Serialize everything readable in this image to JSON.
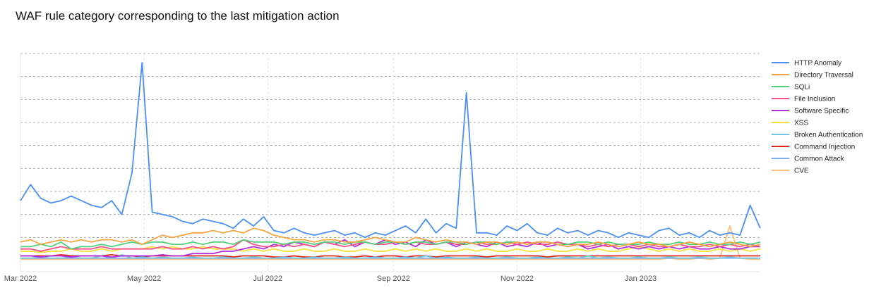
{
  "chart_data": {
    "type": "line",
    "title": "WAF rule category corresponding to the last mitigation action",
    "xlabel": "",
    "ylabel": "",
    "x_start_date": "2022-03-01",
    "x_unit": "days since start",
    "x": [
      0,
      5,
      10,
      15,
      20,
      25,
      30,
      35,
      40,
      45,
      50,
      55,
      60,
      65,
      70,
      75,
      80,
      85,
      90,
      95,
      100,
      105,
      110,
      115,
      120,
      125,
      130,
      135,
      140,
      145,
      150,
      155,
      160,
      165,
      170,
      175,
      180,
      185,
      190,
      195,
      200,
      205,
      210,
      215,
      220,
      225,
      230,
      235,
      240,
      245,
      250,
      255,
      260,
      265,
      270,
      275,
      280,
      285,
      290,
      295,
      300,
      305,
      310,
      315,
      320,
      325,
      330,
      335,
      340,
      345,
      350,
      355,
      360,
      365
    ],
    "xlim": [
      0,
      365
    ],
    "ylim": [
      0,
      9
    ],
    "y_ticks_shown": false,
    "grid": true,
    "x_ticks": [
      {
        "day": 0,
        "label": "Mar 2022"
      },
      {
        "day": 61,
        "label": "May 2022"
      },
      {
        "day": 122,
        "label": "Jul 2022"
      },
      {
        "day": 184,
        "label": "Sep 2022"
      },
      {
        "day": 245,
        "label": "Nov 2022"
      },
      {
        "day": 306,
        "label": "Jan 2023"
      }
    ],
    "legend_position": "right",
    "series": [
      {
        "name": "HTTP Anomaly",
        "color": "#4a8ff5",
        "values": [
          2.6,
          3.3,
          2.7,
          2.5,
          2.6,
          2.8,
          2.6,
          2.4,
          2.3,
          2.6,
          2.0,
          3.8,
          8.6,
          2.1,
          2.0,
          1.9,
          1.7,
          1.6,
          1.8,
          1.7,
          1.6,
          1.4,
          1.8,
          1.5,
          1.9,
          1.3,
          1.2,
          1.4,
          1.2,
          1.1,
          1.2,
          1.3,
          1.1,
          1.2,
          1.0,
          1.2,
          1.1,
          1.3,
          1.5,
          1.2,
          1.8,
          1.2,
          1.6,
          1.4,
          7.3,
          1.2,
          1.2,
          1.1,
          1.5,
          1.3,
          1.6,
          1.2,
          1.1,
          1.4,
          1.2,
          1.3,
          1.1,
          1.3,
          1.2,
          1.0,
          1.2,
          1.1,
          1.0,
          1.3,
          1.4,
          1.1,
          1.2,
          1.0,
          1.3,
          1.1,
          1.2,
          1.1,
          2.4,
          1.4
        ]
      },
      {
        "name": "Directory Traversal",
        "color": "#f7a541",
        "values": [
          0.8,
          0.9,
          0.7,
          0.8,
          0.9,
          0.8,
          0.9,
          0.8,
          0.9,
          0.9,
          0.8,
          0.9,
          0.7,
          0.9,
          1.1,
          1.0,
          1.1,
          1.2,
          1.2,
          1.3,
          1.2,
          1.3,
          1.2,
          1.4,
          1.3,
          1.1,
          1.0,
          0.9,
          0.9,
          0.8,
          0.9,
          0.9,
          0.8,
          0.8,
          0.9,
          1.0,
          0.9,
          0.8,
          0.8,
          1.0,
          0.9,
          0.8,
          0.9,
          0.8,
          0.8,
          0.7,
          0.8,
          0.8,
          0.7,
          0.8,
          0.7,
          0.8,
          0.8,
          0.7,
          0.6,
          0.7,
          0.7,
          0.8,
          0.7,
          0.6,
          0.7,
          0.8,
          0.7,
          0.7,
          0.6,
          0.7,
          0.8,
          0.7,
          0.6,
          0.7,
          0.8,
          0.7,
          0.6,
          0.7
        ]
      },
      {
        "name": "SQLi",
        "color": "#4fd17a",
        "values": [
          0.6,
          0.6,
          0.7,
          0.6,
          0.8,
          0.5,
          0.6,
          0.6,
          0.7,
          0.6,
          0.7,
          0.8,
          0.7,
          0.8,
          0.8,
          0.7,
          0.7,
          0.8,
          0.7,
          0.8,
          0.8,
          0.7,
          0.9,
          0.8,
          0.8,
          0.8,
          0.7,
          0.8,
          0.8,
          0.7,
          0.8,
          0.8,
          0.7,
          0.8,
          0.8,
          0.7,
          0.8,
          0.8,
          0.7,
          0.8,
          0.8,
          0.7,
          0.8,
          0.8,
          0.7,
          0.8,
          0.8,
          0.7,
          0.8,
          0.8,
          0.7,
          0.8,
          0.8,
          0.7,
          0.7,
          0.8,
          0.8,
          0.7,
          0.8,
          0.7,
          0.7,
          0.7,
          0.8,
          0.7,
          0.7,
          0.8,
          0.7,
          0.7,
          0.8,
          0.7,
          0.7,
          0.8,
          0.7,
          0.8
        ]
      },
      {
        "name": "File Inclusion",
        "color": "#f5508a",
        "values": [
          0.5,
          0.5,
          0.4,
          0.5,
          0.6,
          0.5,
          0.5,
          0.5,
          0.6,
          0.5,
          0.5,
          0.5,
          0.5,
          0.5,
          0.6,
          0.5,
          0.5,
          0.6,
          0.5,
          0.6,
          0.5,
          0.6,
          0.9,
          0.7,
          0.6,
          0.6,
          0.7,
          0.6,
          0.7,
          0.6,
          0.8,
          0.7,
          0.6,
          0.7,
          0.8,
          0.7,
          0.7,
          0.8,
          0.7,
          0.8,
          0.7,
          0.7,
          0.8,
          0.7,
          0.7,
          0.8,
          0.7,
          0.7,
          0.8,
          0.7,
          0.8,
          0.7,
          0.7,
          0.8,
          0.7,
          0.7,
          0.6,
          0.7,
          0.6,
          0.7,
          0.7,
          0.6,
          0.7,
          0.6,
          0.6,
          0.7,
          0.6,
          0.6,
          0.7,
          0.6,
          0.7,
          0.6,
          0.7,
          0.6
        ]
      },
      {
        "name": "Software Specific",
        "color": "#b22ee0",
        "values": [
          0.2,
          0.2,
          0.15,
          0.2,
          0.2,
          0.15,
          0.2,
          0.2,
          0.2,
          0.15,
          0.2,
          0.2,
          0.2,
          0.2,
          0.25,
          0.2,
          0.2,
          0.3,
          0.3,
          0.3,
          0.4,
          0.4,
          0.5,
          0.6,
          0.5,
          0.7,
          0.6,
          0.8,
          0.7,
          0.6,
          0.8,
          0.7,
          0.9,
          0.6,
          0.8,
          0.7,
          0.9,
          0.7,
          0.8,
          0.6,
          0.9,
          0.7,
          0.8,
          0.6,
          0.8,
          0.7,
          0.6,
          0.8,
          0.6,
          0.7,
          0.6,
          0.8,
          0.6,
          0.7,
          0.6,
          0.7,
          0.5,
          0.6,
          0.7,
          0.5,
          0.6,
          0.5,
          0.6,
          0.5,
          0.6,
          0.5,
          0.6,
          0.5,
          0.5,
          0.6,
          0.5,
          0.5,
          0.6,
          0.6
        ]
      },
      {
        "name": "XSS",
        "color": "#f8df3a",
        "values": [
          0.4,
          0.4,
          0.35,
          0.4,
          0.4,
          0.5,
          0.4,
          0.4,
          0.5,
          0.4,
          0.5,
          0.5,
          0.5,
          0.6,
          0.5,
          0.6,
          0.5,
          0.5,
          0.6,
          0.5,
          0.5,
          0.5,
          0.4,
          0.5,
          0.4,
          0.5,
          0.4,
          0.4,
          0.5,
          0.4,
          0.4,
          0.5,
          0.4,
          0.4,
          0.5,
          0.4,
          0.4,
          0.5,
          0.4,
          0.5,
          0.4,
          0.5,
          0.4,
          0.4,
          0.5,
          0.4,
          0.5,
          0.4,
          0.4,
          0.5,
          0.4,
          0.4,
          0.5,
          0.4,
          0.4,
          0.5,
          0.4,
          0.5,
          0.4,
          0.4,
          0.5,
          0.6,
          0.5,
          0.4,
          0.5,
          0.4,
          0.5,
          0.4,
          0.4,
          0.5,
          0.4,
          0.5,
          0.4,
          0.5
        ]
      },
      {
        "name": "Broken Authentication",
        "color": "#6cc8e5",
        "values": [
          0.1,
          0.1,
          0.15,
          0.1,
          0.1,
          0.15,
          0.1,
          0.1,
          0.2,
          0.1,
          0.25,
          0.1,
          0.15,
          0.1,
          0.15,
          0.1,
          0.1,
          0.15,
          0.1,
          0.1,
          0.15,
          0.1,
          0.1,
          0.15,
          0.1,
          0.1,
          0.15,
          0.1,
          0.1,
          0.15,
          0.1,
          0.1,
          0.15,
          0.1,
          0.1,
          0.15,
          0.1,
          0.1,
          0.15,
          0.1,
          0.2,
          0.1,
          0.15,
          0.1,
          0.1,
          0.15,
          0.1,
          0.1,
          0.15,
          0.1,
          0.1,
          0.15,
          0.1,
          0.1,
          0.15,
          0.1,
          0.2,
          0.1,
          0.15,
          0.1,
          0.1,
          0.15,
          0.1,
          0.1,
          0.15,
          0.1,
          0.1,
          0.15,
          0.1,
          0.1,
          0.15,
          0.1,
          0.1,
          0.1
        ]
      },
      {
        "name": "Command Injection",
        "color": "#e3241b",
        "values": [
          0.2,
          0.2,
          0.2,
          0.2,
          0.25,
          0.2,
          0.2,
          0.2,
          0.2,
          0.25,
          0.2,
          0.2,
          0.15,
          0.2,
          0.2,
          0.2,
          0.2,
          0.2,
          0.2,
          0.2,
          0.2,
          0.15,
          0.2,
          0.2,
          0.2,
          0.15,
          0.15,
          0.2,
          0.15,
          0.15,
          0.2,
          0.2,
          0.15,
          0.15,
          0.2,
          0.15,
          0.2,
          0.2,
          0.15,
          0.2,
          0.2,
          0.15,
          0.2,
          0.2,
          0.2,
          0.2,
          0.15,
          0.2,
          0.2,
          0.2,
          0.2,
          0.2,
          0.15,
          0.2,
          0.2,
          0.2,
          0.2,
          0.2,
          0.2,
          0.2,
          0.2,
          0.2,
          0.2,
          0.2,
          0.2,
          0.2,
          0.2,
          0.2,
          0.2,
          0.2,
          0.2,
          0.2,
          0.2,
          0.2
        ]
      },
      {
        "name": "Common Attack",
        "color": "#7fb0f4",
        "values": [
          0.1,
          0.1,
          0.1,
          0.1,
          0.1,
          0.1,
          0.1,
          0.1,
          0.1,
          0.1,
          0.1,
          0.1,
          0.1,
          0.1,
          0.1,
          0.1,
          0.1,
          0.1,
          0.1,
          0.1,
          0.1,
          0.1,
          0.1,
          0.1,
          0.1,
          0.1,
          0.1,
          0.1,
          0.1,
          0.1,
          0.1,
          0.1,
          0.1,
          0.1,
          0.1,
          0.1,
          0.1,
          0.1,
          0.1,
          0.1,
          0.1,
          0.1,
          0.1,
          0.1,
          0.1,
          0.1,
          0.1,
          0.1,
          0.1,
          0.1,
          0.1,
          0.1,
          0.1,
          0.1,
          0.1,
          0.1,
          0.1,
          0.1,
          0.1,
          0.1,
          0.1,
          0.1,
          0.1,
          0.1,
          0.1,
          0.1,
          0.1,
          0.1,
          0.1,
          0.1,
          0.1,
          0.1,
          0.1,
          0.1
        ]
      },
      {
        "name": "CVE",
        "color": "#fbc07c",
        "values": [
          0.05,
          0.05,
          0.05,
          0.05,
          0.05,
          0.05,
          0.05,
          0.05,
          0.05,
          0.05,
          0.05,
          0.05,
          0.05,
          0.05,
          0.05,
          0.05,
          0.05,
          0.05,
          0.05,
          0.05,
          0.05,
          0.05,
          0.05,
          0.05,
          0.05,
          0.05,
          0.05,
          0.05,
          0.05,
          0.05,
          0.05,
          0.05,
          0.05,
          0.05,
          0.05,
          0.05,
          0.05,
          0.05,
          0.05,
          0.05,
          0.05,
          0.05,
          0.05,
          0.05,
          0.05,
          0.05,
          0.05,
          0.05,
          0.05,
          0.05,
          0.05,
          0.05,
          0.05,
          0.05,
          0.05,
          0.05,
          0.05,
          0.05,
          0.05,
          0.05,
          0.05,
          0.05,
          0.05,
          0.05,
          0.1,
          0.05,
          0.05,
          0.1,
          0.05,
          0.1,
          1.5,
          0.1,
          0.05,
          0.05
        ]
      }
    ]
  }
}
